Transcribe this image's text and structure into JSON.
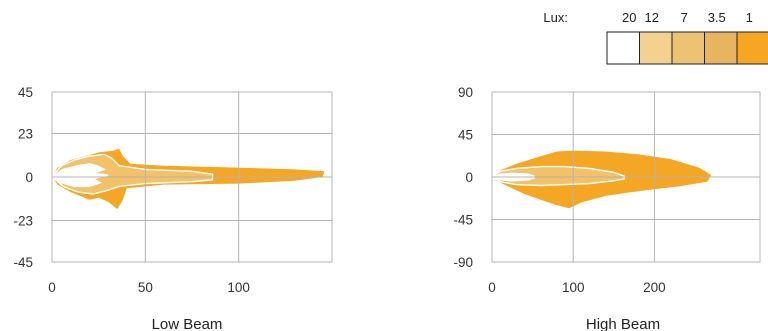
{
  "legend": {
    "label": "Lux:",
    "levels": [
      "20",
      "12",
      "7",
      "3.5",
      "1"
    ],
    "colors": [
      "#ffffff",
      "#f2d28e",
      "#ebc372",
      "#e6b55e",
      "#f5a623"
    ]
  },
  "chart_data": [
    {
      "type": "area",
      "title": "Low Beam",
      "xlim": [
        0,
        150
      ],
      "ylim": [
        -45,
        45
      ],
      "xticks": [
        "0",
        "50",
        "100"
      ],
      "yticks": [
        "45",
        "23",
        "0",
        "-23",
        "-45"
      ],
      "xtick_values": [
        0,
        50,
        100
      ],
      "ytick_values": [
        45,
        23,
        0,
        -23,
        -45
      ],
      "grid": true,
      "series": [
        {
          "level": "1",
          "color": "#f5a623",
          "points": [
            [
              0,
              0
            ],
            [
              3,
              5
            ],
            [
              10,
              9
            ],
            [
              18,
              11
            ],
            [
              25,
              13
            ],
            [
              33,
              14
            ],
            [
              36,
              15
            ],
            [
              38,
              11
            ],
            [
              42,
              7
            ],
            [
              60,
              6
            ],
            [
              100,
              5
            ],
            [
              130,
              4
            ],
            [
              146,
              3
            ],
            [
              145,
              0
            ],
            [
              130,
              -2
            ],
            [
              100,
              -3.5
            ],
            [
              60,
              -4
            ],
            [
              40,
              -6
            ],
            [
              38,
              -12
            ],
            [
              35,
              -17
            ],
            [
              30,
              -13
            ],
            [
              25,
              -11
            ],
            [
              20,
              -12
            ],
            [
              15,
              -10
            ],
            [
              10,
              -8
            ],
            [
              3,
              -4
            ],
            [
              0,
              0
            ]
          ]
        },
        {
          "level": "3.5",
          "color": "#f2c168",
          "points": [
            [
              0,
              0
            ],
            [
              5,
              6
            ],
            [
              12,
              9
            ],
            [
              20,
              11
            ],
            [
              28,
              12
            ],
            [
              32,
              10
            ],
            [
              36,
              6
            ],
            [
              50,
              4
            ],
            [
              75,
              3
            ],
            [
              86,
              1.5
            ],
            [
              86,
              -1.5
            ],
            [
              75,
              -2.5
            ],
            [
              50,
              -3.5
            ],
            [
              36,
              -5
            ],
            [
              30,
              -7
            ],
            [
              22,
              -9
            ],
            [
              14,
              -8
            ],
            [
              6,
              -5
            ],
            [
              0,
              0
            ]
          ]
        },
        {
          "level": "12",
          "color": "#ffffff",
          "points": [
            [
              0,
              0
            ],
            [
              6,
              4
            ],
            [
              14,
              6
            ],
            [
              20,
              7
            ],
            [
              24,
              6
            ],
            [
              28,
              4
            ],
            [
              22,
              2
            ],
            [
              30,
              1
            ],
            [
              22,
              -1
            ],
            [
              26,
              -3
            ],
            [
              20,
              -5
            ],
            [
              12,
              -5
            ],
            [
              5,
              -3
            ],
            [
              0,
              0
            ]
          ]
        }
      ]
    },
    {
      "type": "area",
      "title": "High Beam",
      "xlim": [
        0,
        330
      ],
      "ylim": [
        -90,
        90
      ],
      "xticks": [
        "0",
        "100",
        "200"
      ],
      "yticks": [
        "90",
        "45",
        "0",
        "-45",
        "-90"
      ],
      "xtick_values": [
        0,
        100,
        200
      ],
      "ytick_values": [
        90,
        45,
        0,
        -45,
        -90
      ],
      "grid": true,
      "series": [
        {
          "level": "1",
          "color": "#f5a623",
          "points": [
            [
              0,
              0
            ],
            [
              10,
              7
            ],
            [
              30,
              14
            ],
            [
              60,
              22
            ],
            [
              80,
              27
            ],
            [
              100,
              28
            ],
            [
              140,
              27
            ],
            [
              180,
              24
            ],
            [
              220,
              19
            ],
            [
              255,
              10
            ],
            [
              270,
              2
            ],
            [
              265,
              -5
            ],
            [
              230,
              -10
            ],
            [
              180,
              -15
            ],
            [
              140,
              -20
            ],
            [
              110,
              -27
            ],
            [
              95,
              -33
            ],
            [
              80,
              -30
            ],
            [
              60,
              -24
            ],
            [
              40,
              -18
            ],
            [
              20,
              -10
            ],
            [
              5,
              -4
            ],
            [
              0,
              0
            ]
          ]
        },
        {
          "level": "3.5",
          "color": "#f2c168",
          "points": [
            [
              0,
              0
            ],
            [
              10,
              6
            ],
            [
              30,
              9
            ],
            [
              60,
              11
            ],
            [
              90,
              11
            ],
            [
              120,
              9
            ],
            [
              150,
              5
            ],
            [
              163,
              1
            ],
            [
              163,
              -2
            ],
            [
              150,
              -4
            ],
            [
              120,
              -7
            ],
            [
              90,
              -8
            ],
            [
              60,
              -9
            ],
            [
              30,
              -8
            ],
            [
              10,
              -5
            ],
            [
              0,
              0
            ]
          ]
        },
        {
          "level": "12",
          "color": "#ffffff",
          "points": [
            [
              0,
              0
            ],
            [
              10,
              3
            ],
            [
              25,
              4
            ],
            [
              45,
              3
            ],
            [
              52,
              1
            ],
            [
              52,
              -1
            ],
            [
              45,
              -3
            ],
            [
              25,
              -4
            ],
            [
              10,
              -3
            ],
            [
              0,
              0
            ]
          ]
        }
      ]
    }
  ]
}
